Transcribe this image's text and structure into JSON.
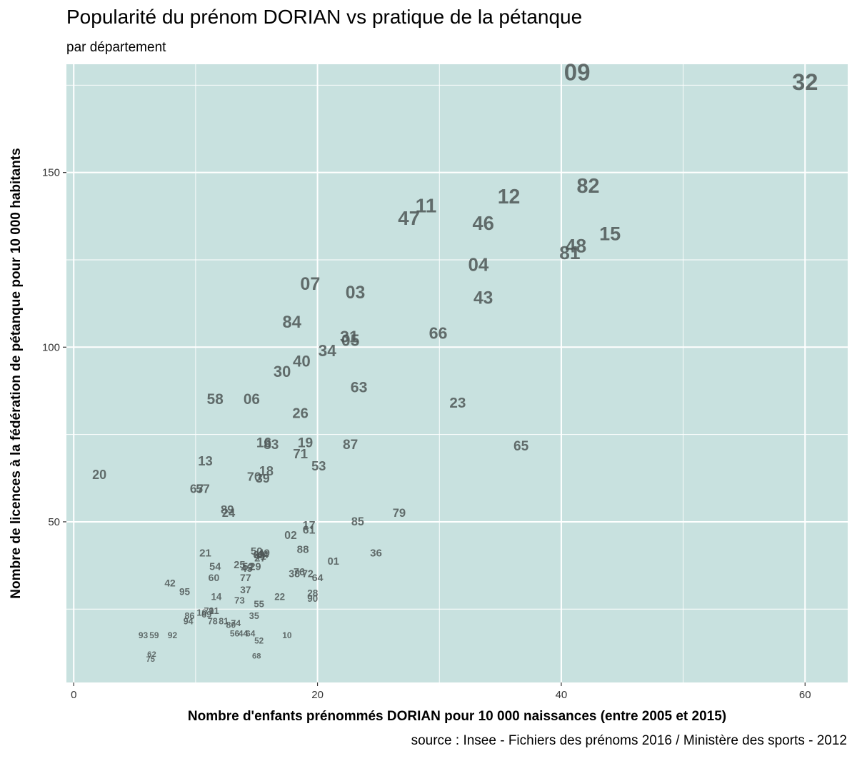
{
  "chart_data": {
    "type": "scatter",
    "title": "Popularité du prénom DORIAN vs pratique de la pétanque",
    "subtitle": "par département",
    "caption": "source : Insee - Fichiers des prénoms 2016 / Ministère des sports - 2012",
    "xlabel": "Nombre d'enfants prénommés DORIAN pour 10 000 naissances (entre 2005 et 2015)",
    "ylabel": "Nombre de licences à la fédération de pétanque pour 10 000 habitants",
    "xlim": [
      -0.6,
      63.5
    ],
    "ylim": [
      4,
      181
    ],
    "x_ticks": [
      0,
      20,
      40,
      60
    ],
    "y_ticks": [
      50,
      100,
      150
    ],
    "x_tick_labels": [
      "0",
      "20",
      "40",
      "60"
    ],
    "y_tick_labels": [
      "50",
      "100",
      "150"
    ],
    "grid": true,
    "panel_color": "#c8e1df",
    "label_color": "#4d5656",
    "points": [
      {
        "label": "09",
        "x": 41.3,
        "y": 178.5
      },
      {
        "label": "32",
        "x": 60.0,
        "y": 176
      },
      {
        "label": "82",
        "x": 42.2,
        "y": 146
      },
      {
        "label": "12",
        "x": 35.7,
        "y": 143
      },
      {
        "label": "11",
        "x": 28.9,
        "y": 140.5
      },
      {
        "label": "47",
        "x": 27.5,
        "y": 137
      },
      {
        "label": "46",
        "x": 33.6,
        "y": 135.5
      },
      {
        "label": "15",
        "x": 44.0,
        "y": 132.5
      },
      {
        "label": "48",
        "x": 41.2,
        "y": 129
      },
      {
        "label": "81",
        "x": 40.7,
        "y": 127
      },
      {
        "label": "04",
        "x": 33.2,
        "y": 123.5
      },
      {
        "label": "07",
        "x": 19.4,
        "y": 118
      },
      {
        "label": "03",
        "x": 23.1,
        "y": 115.5
      },
      {
        "label": "43",
        "x": 33.6,
        "y": 114
      },
      {
        "label": "84",
        "x": 17.9,
        "y": 107
      },
      {
        "label": "66",
        "x": 29.9,
        "y": 104
      },
      {
        "label": "31",
        "x": 22.6,
        "y": 103
      },
      {
        "label": "05",
        "x": 22.7,
        "y": 102
      },
      {
        "label": "34",
        "x": 20.8,
        "y": 99
      },
      {
        "label": "40",
        "x": 18.7,
        "y": 96
      },
      {
        "label": "30",
        "x": 17.1,
        "y": 93
      },
      {
        "label": "63",
        "x": 23.4,
        "y": 88.5
      },
      {
        "label": "58",
        "x": 11.6,
        "y": 85
      },
      {
        "label": "06",
        "x": 14.6,
        "y": 85
      },
      {
        "label": "23",
        "x": 31.5,
        "y": 84
      },
      {
        "label": "26",
        "x": 18.6,
        "y": 81
      },
      {
        "label": "65",
        "x": 36.7,
        "y": 71.5
      },
      {
        "label": "16",
        "x": 15.6,
        "y": 72.5
      },
      {
        "label": "83",
        "x": 16.2,
        "y": 72
      },
      {
        "label": "19",
        "x": 19.0,
        "y": 72.5
      },
      {
        "label": "87",
        "x": 22.7,
        "y": 72
      },
      {
        "label": "71",
        "x": 18.6,
        "y": 69.5
      },
      {
        "label": "13",
        "x": 10.8,
        "y": 67.5
      },
      {
        "label": "53",
        "x": 20.1,
        "y": 66
      },
      {
        "label": "20",
        "x": 2.1,
        "y": 63.5
      },
      {
        "label": "18",
        "x": 15.8,
        "y": 64.5
      },
      {
        "label": "70",
        "x": 14.8,
        "y": 63
      },
      {
        "label": "39",
        "x": 15.5,
        "y": 62.5
      },
      {
        "label": "67",
        "x": 10.1,
        "y": 59.5
      },
      {
        "label": "57",
        "x": 10.6,
        "y": 59.5
      },
      {
        "label": "79",
        "x": 26.7,
        "y": 52.5
      },
      {
        "label": "89",
        "x": 12.6,
        "y": 53.5
      },
      {
        "label": "24",
        "x": 12.7,
        "y": 52.5
      },
      {
        "label": "85",
        "x": 23.3,
        "y": 50
      },
      {
        "label": "17",
        "x": 19.3,
        "y": 49
      },
      {
        "label": "61",
        "x": 19.3,
        "y": 47.5
      },
      {
        "label": "02",
        "x": 17.8,
        "y": 46
      },
      {
        "label": "88",
        "x": 18.8,
        "y": 42
      },
      {
        "label": "36",
        "x": 24.8,
        "y": 41
      },
      {
        "label": "50",
        "x": 15.0,
        "y": 41.5
      },
      {
        "label": "49",
        "x": 15.6,
        "y": 41
      },
      {
        "label": "62b",
        "x": 15.2,
        "y": 40.5
      },
      {
        "label": "41",
        "x": 15.3,
        "y": 40
      },
      {
        "label": "44",
        "x": 15.5,
        "y": 40.5
      },
      {
        "label": "27",
        "x": 15.3,
        "y": 39.5
      },
      {
        "label": "21",
        "x": 10.8,
        "y": 41
      },
      {
        "label": "01",
        "x": 21.3,
        "y": 38.5
      },
      {
        "label": "25",
        "x": 13.6,
        "y": 37.5
      },
      {
        "label": "52b",
        "x": 14.3,
        "y": 37
      },
      {
        "label": "29",
        "x": 14.9,
        "y": 37
      },
      {
        "label": "54",
        "x": 11.6,
        "y": 37
      },
      {
        "label": "45",
        "x": 14.2,
        "y": 36.5
      },
      {
        "label": "38",
        "x": 18.1,
        "y": 35
      },
      {
        "label": "76",
        "x": 18.5,
        "y": 35.5
      },
      {
        "label": "72",
        "x": 19.2,
        "y": 35
      },
      {
        "label": "64",
        "x": 20.0,
        "y": 34
      },
      {
        "label": "60",
        "x": 11.5,
        "y": 34
      },
      {
        "label": "77",
        "x": 14.1,
        "y": 34
      },
      {
        "label": "42",
        "x": 7.9,
        "y": 32.5
      },
      {
        "label": "37",
        "x": 14.1,
        "y": 30.5
      },
      {
        "label": "95",
        "x": 9.1,
        "y": 30
      },
      {
        "label": "28",
        "x": 19.6,
        "y": 29.5
      },
      {
        "label": "14",
        "x": 11.7,
        "y": 28.5
      },
      {
        "label": "22",
        "x": 16.9,
        "y": 28.5
      },
      {
        "label": "90",
        "x": 19.6,
        "y": 28
      },
      {
        "label": "73",
        "x": 13.6,
        "y": 27.5
      },
      {
        "label": "55",
        "x": 15.2,
        "y": 26.5
      },
      {
        "label": "91",
        "x": 11.5,
        "y": 24.5
      },
      {
        "label": "71b",
        "x": 11.1,
        "y": 24.5
      },
      {
        "label": "16b",
        "x": 10.5,
        "y": 24
      },
      {
        "label": "69",
        "x": 10.9,
        "y": 23.5
      },
      {
        "label": "86",
        "x": 9.5,
        "y": 23
      },
      {
        "label": "94",
        "x": 9.4,
        "y": 21.5
      },
      {
        "label": "35",
        "x": 14.8,
        "y": 23
      },
      {
        "label": "78",
        "x": 11.4,
        "y": 21.5
      },
      {
        "label": "81b",
        "x": 12.3,
        "y": 21.5
      },
      {
        "label": "74",
        "x": 13.3,
        "y": 21
      },
      {
        "label": "80",
        "x": 12.9,
        "y": 20.5
      },
      {
        "label": "56",
        "x": 13.2,
        "y": 18
      },
      {
        "label": "44b",
        "x": 13.9,
        "y": 18
      },
      {
        "label": "64b",
        "x": 14.5,
        "y": 18
      },
      {
        "label": "10",
        "x": 17.5,
        "y": 17.5
      },
      {
        "label": "93",
        "x": 5.7,
        "y": 17.5
      },
      {
        "label": "59",
        "x": 6.6,
        "y": 17.5
      },
      {
        "label": "92",
        "x": 8.1,
        "y": 17.5
      },
      {
        "label": "52",
        "x": 15.2,
        "y": 16
      },
      {
        "label": "62",
        "x": 6.4,
        "y": 12
      },
      {
        "label": "75",
        "x": 6.3,
        "y": 10.5
      },
      {
        "label": "68",
        "x": 15.0,
        "y": 11.5
      }
    ]
  }
}
